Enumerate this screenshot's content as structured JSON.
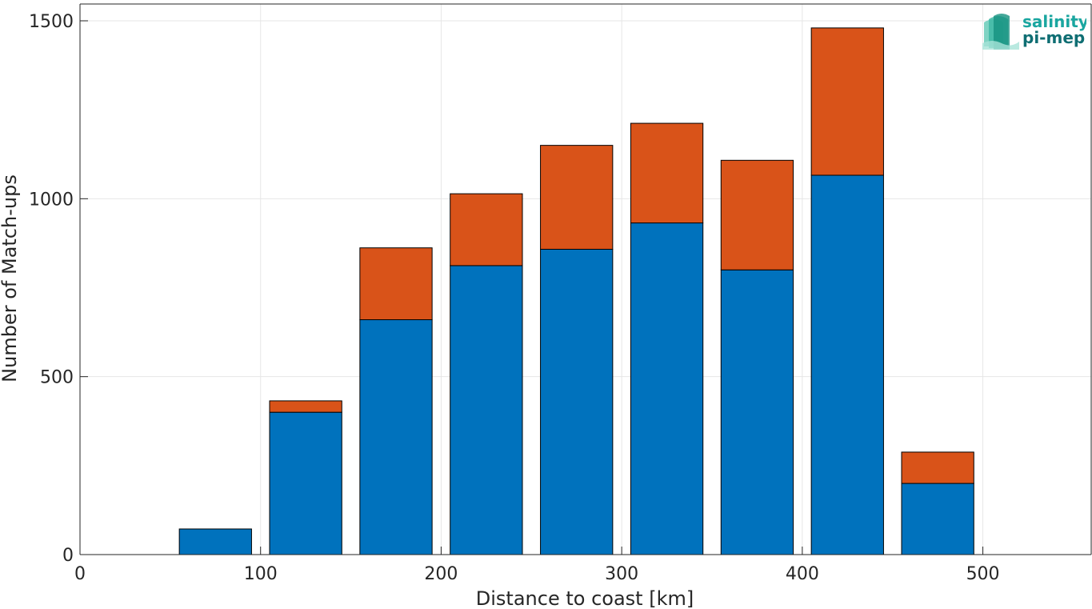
{
  "logo": {
    "line1": "salinity",
    "line2": "pi-mep",
    "color1": "#1aa6a0",
    "color2": "#0f6e73"
  },
  "chart_data": {
    "type": "bar",
    "stacked": true,
    "xlabel": "Distance to coast [km]",
    "ylabel": "Number of Match-ups",
    "xlim": [
      0,
      560
    ],
    "ylim": [
      0,
      1500
    ],
    "xticks": [
      0,
      100,
      200,
      300,
      400,
      500
    ],
    "yticks": [
      0,
      500,
      1000,
      1500
    ],
    "grid": true,
    "bin_width": 50,
    "bar_width": 40,
    "x": [
      25,
      75,
      125,
      175,
      225,
      275,
      325,
      375,
      425,
      475,
      525
    ],
    "series": [
      {
        "color": "#0072bd",
        "values": [
          0,
          72,
          400,
          660,
          812,
          858,
          932,
          800,
          1066,
          200,
          0
        ]
      },
      {
        "color": "#d95319",
        "values": [
          0,
          0,
          32,
          202,
          202,
          292,
          280,
          308,
          414,
          88,
          0
        ]
      }
    ]
  }
}
